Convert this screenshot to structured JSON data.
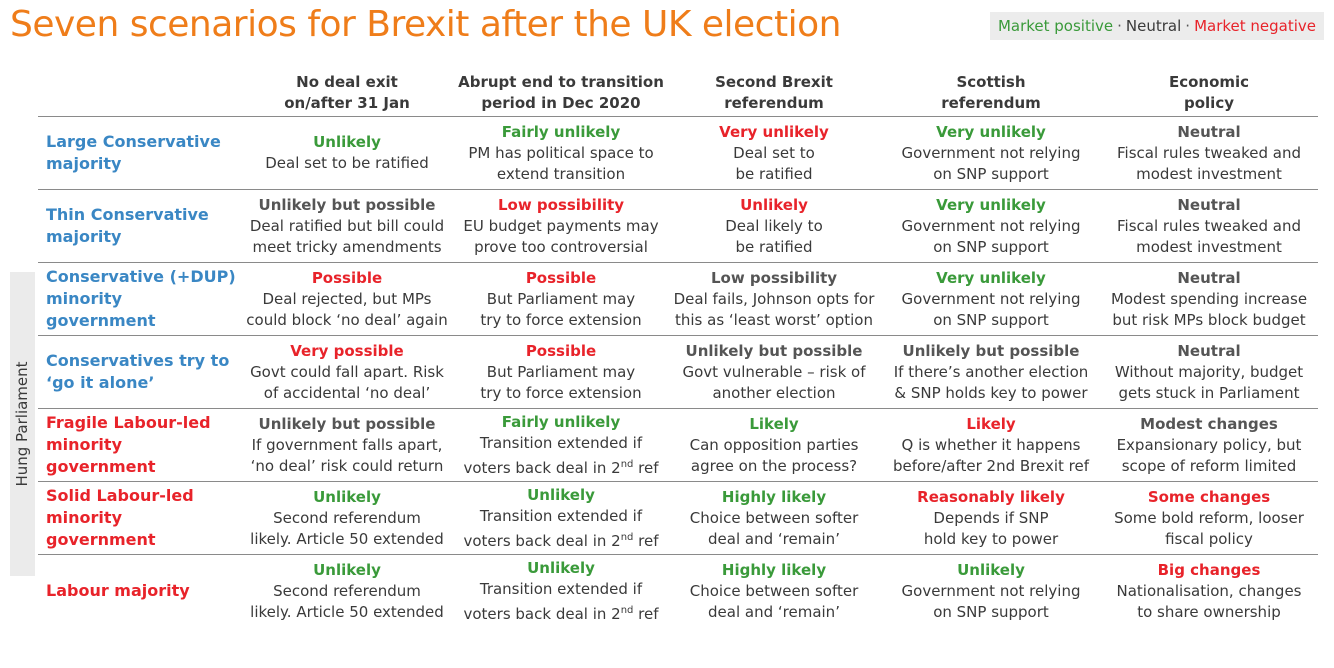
{
  "title": "Seven scenarios for Brexit after the UK election",
  "legend": {
    "positive": "Market positive",
    "separator": "·",
    "neutral": "Neutral",
    "negative": "Market negative"
  },
  "colors": {
    "title": "#ef7d1a",
    "positive": "#3a9a3a",
    "neutral": "#555555",
    "negative": "#e8232a",
    "row_blue": "#3a87c4"
  },
  "hung_parliament_label": "Hung Parliament",
  "columns": [
    {
      "line1": "No deal exit",
      "line2": "on/after 31 Jan"
    },
    {
      "line1": "Abrupt end to transition",
      "line2": "period in Dec 2020"
    },
    {
      "line1": "Second Brexit",
      "line2": "referendum"
    },
    {
      "line1": "Scottish",
      "line2": "referendum"
    },
    {
      "line1": "Economic",
      "line2": "policy"
    }
  ],
  "rows": [
    {
      "label": "Large Conservative majority",
      "cells": [
        {
          "level": "Unlikely",
          "sentiment": "positive",
          "line1": "Deal set to be ratified",
          "line2": ""
        },
        {
          "level": "Fairly unlikely",
          "sentiment": "positive",
          "line1": "PM has political space to",
          "line2": "extend transition"
        },
        {
          "level": "Very unlikely",
          "sentiment": "negative",
          "line1": "Deal set to",
          "line2": "be ratified"
        },
        {
          "level": "Very unlikely",
          "sentiment": "positive",
          "line1": "Government not relying",
          "line2": "on SNP support"
        },
        {
          "level": "Neutral",
          "sentiment": "neutral",
          "line1": "Fiscal rules tweaked and",
          "line2": "modest investment"
        }
      ]
    },
    {
      "label": "Thin Conservative majority",
      "cells": [
        {
          "level": "Unlikely but possible",
          "sentiment": "neutral",
          "line1": "Deal ratified but bill could",
          "line2": "meet tricky amendments"
        },
        {
          "level": "Low possibility",
          "sentiment": "negative",
          "line1": "EU budget payments may",
          "line2": "prove too controversial"
        },
        {
          "level": "Unlikely",
          "sentiment": "negative",
          "line1": "Deal likely to",
          "line2": "be ratified"
        },
        {
          "level": "Very unlikely",
          "sentiment": "positive",
          "line1": "Government not relying",
          "line2": "on SNP support"
        },
        {
          "level": "Neutral",
          "sentiment": "neutral",
          "line1": "Fiscal rules tweaked and",
          "line2": "modest investment"
        }
      ]
    },
    {
      "label": "Conservative (+DUP) minority government",
      "cells": [
        {
          "level": "Possible",
          "sentiment": "negative",
          "line1": "Deal rejected, but MPs",
          "line2": "could block ‘no deal’ again"
        },
        {
          "level": "Possible",
          "sentiment": "negative",
          "line1": "But Parliament may",
          "line2": "try to force extension"
        },
        {
          "level": "Low possibility",
          "sentiment": "neutral",
          "line1": "Deal fails, Johnson opts for",
          "line2": "this as ‘least worst’ option"
        },
        {
          "level": "Very unlikely",
          "sentiment": "positive",
          "line1": "Government not relying",
          "line2": "on SNP support"
        },
        {
          "level": "Neutral",
          "sentiment": "neutral",
          "line1": "Modest spending increase",
          "line2": "but risk MPs block budget"
        }
      ]
    },
    {
      "label": "Conservatives try to ‘go it alone’",
      "cells": [
        {
          "level": "Very possible",
          "sentiment": "negative",
          "line1": "Govt could fall apart. Risk",
          "line2": "of accidental ‘no deal’"
        },
        {
          "level": "Possible",
          "sentiment": "negative",
          "line1": "But Parliament may",
          "line2": "try to force extension"
        },
        {
          "level": "Unlikely but possible",
          "sentiment": "neutral",
          "line1": "Govt vulnerable – risk of",
          "line2": "another election"
        },
        {
          "level": "Unlikely but possible",
          "sentiment": "neutral",
          "line1": "If there’s another election",
          "line2": "& SNP holds key to power"
        },
        {
          "level": "Neutral",
          "sentiment": "neutral",
          "line1": "Without majority, budget",
          "line2": "gets stuck in Parliament"
        }
      ]
    },
    {
      "label": "Fragile Labour-led minority government",
      "cells": [
        {
          "level": "Unlikely but possible",
          "sentiment": "neutral",
          "line1": "If government falls apart,",
          "line2": "‘no deal’ risk could return"
        },
        {
          "level": "Fairly unlikely",
          "sentiment": "positive",
          "line1": "Transition extended if",
          "line2": "voters back deal in 2",
          "line2_sup": "nd",
          "line2_tail": " ref"
        },
        {
          "level": "Likely",
          "sentiment": "positive",
          "line1": "Can opposition parties",
          "line2": "agree on the process?"
        },
        {
          "level": "Likely",
          "sentiment": "negative",
          "line1": "Q is whether it happens",
          "line2": "before/after 2nd Brexit ref"
        },
        {
          "level": "Modest changes",
          "sentiment": "neutral",
          "line1": "Expansionary policy, but",
          "line2": "scope of reform limited"
        }
      ]
    },
    {
      "label": "Solid Labour-led minority government",
      "cells": [
        {
          "level": "Unlikely",
          "sentiment": "positive",
          "line1": "Second referendum",
          "line2": "likely. Article 50 extended"
        },
        {
          "level": "Unlikely",
          "sentiment": "positive",
          "line1": "Transition extended if",
          "line2": "voters back deal in 2",
          "line2_sup": "nd",
          "line2_tail": " ref"
        },
        {
          "level": "Highly likely",
          "sentiment": "positive",
          "line1": "Choice between softer",
          "line2": "deal and ‘remain’"
        },
        {
          "level": "Reasonably likely",
          "sentiment": "negative",
          "line1": "Depends if SNP",
          "line2": "hold key to power"
        },
        {
          "level": "Some changes",
          "sentiment": "negative",
          "line1": "Some bold reform, looser",
          "line2": "fiscal policy"
        }
      ]
    },
    {
      "label": "Labour majority",
      "cells": [
        {
          "level": "Unlikely",
          "sentiment": "positive",
          "line1": "Second referendum",
          "line2": "likely. Article 50 extended"
        },
        {
          "level": "Unlikely",
          "sentiment": "positive",
          "line1": "Transition extended if",
          "line2": "voters back deal in 2",
          "line2_sup": "nd",
          "line2_tail": " ref"
        },
        {
          "level": "Highly likely",
          "sentiment": "positive",
          "line1": "Choice between softer",
          "line2": "deal and ‘remain’"
        },
        {
          "level": "Unlikely",
          "sentiment": "positive",
          "line1": "Government not relying",
          "line2": "on SNP support"
        },
        {
          "level": "Big changes",
          "sentiment": "negative",
          "line1": "Nationalisation, changes",
          "line2": "to share ownership"
        }
      ]
    }
  ]
}
